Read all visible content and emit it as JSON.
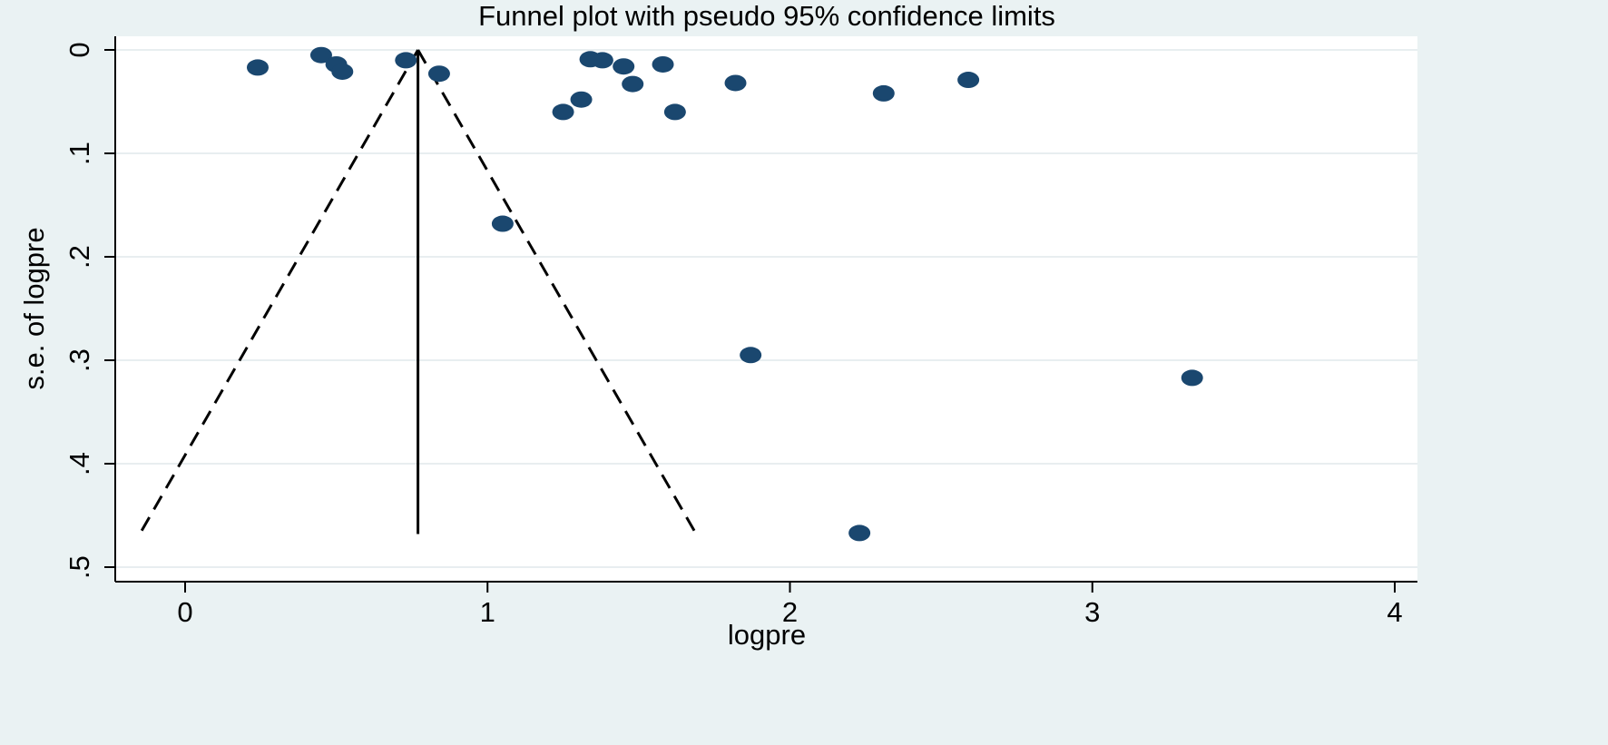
{
  "chart_data": {
    "type": "scatter",
    "title": "Funnel plot with pseudo 95% confidence limits",
    "xlabel": "logpre",
    "ylabel": "s.e. of logpre",
    "xlim": [
      -0.23,
      4.07
    ],
    "ylim": [
      0.0,
      0.513
    ],
    "y_inverted": true,
    "grid": true,
    "x_ticks": [
      0,
      1,
      2,
      3,
      4
    ],
    "x_tick_labels": [
      "0",
      "1",
      "2",
      "3",
      "4"
    ],
    "y_ticks": [
      0,
      0.1,
      0.2,
      0.3,
      0.4,
      0.5
    ],
    "y_tick_labels": [
      "0",
      ".1",
      ".2",
      ".3",
      ".4",
      ".5"
    ],
    "pooled_estimate": 0.77,
    "pseudo_ci_lines": {
      "apex": [
        0.77,
        0.0
      ],
      "left_end": [
        -0.15,
        0.468
      ],
      "right_end": [
        1.69,
        0.468
      ]
    },
    "points": [
      {
        "x": 0.24,
        "y": 0.017
      },
      {
        "x": 0.45,
        "y": 0.005
      },
      {
        "x": 0.5,
        "y": 0.014
      },
      {
        "x": 0.52,
        "y": 0.021
      },
      {
        "x": 0.73,
        "y": 0.01
      },
      {
        "x": 0.84,
        "y": 0.023
      },
      {
        "x": 1.05,
        "y": 0.168
      },
      {
        "x": 1.25,
        "y": 0.06
      },
      {
        "x": 1.31,
        "y": 0.048
      },
      {
        "x": 1.34,
        "y": 0.009
      },
      {
        "x": 1.38,
        "y": 0.01
      },
      {
        "x": 1.45,
        "y": 0.016
      },
      {
        "x": 1.48,
        "y": 0.033
      },
      {
        "x": 1.58,
        "y": 0.014
      },
      {
        "x": 1.62,
        "y": 0.06
      },
      {
        "x": 1.82,
        "y": 0.032
      },
      {
        "x": 1.87,
        "y": 0.295
      },
      {
        "x": 2.23,
        "y": 0.467
      },
      {
        "x": 2.31,
        "y": 0.042
      },
      {
        "x": 2.59,
        "y": 0.029
      },
      {
        "x": 3.33,
        "y": 0.317
      }
    ],
    "colors": {
      "background": "#eaf2f3",
      "plot_area": "#ffffff",
      "grid": "#e8eef0",
      "points": "#1a476f",
      "lines": "#000000"
    }
  }
}
